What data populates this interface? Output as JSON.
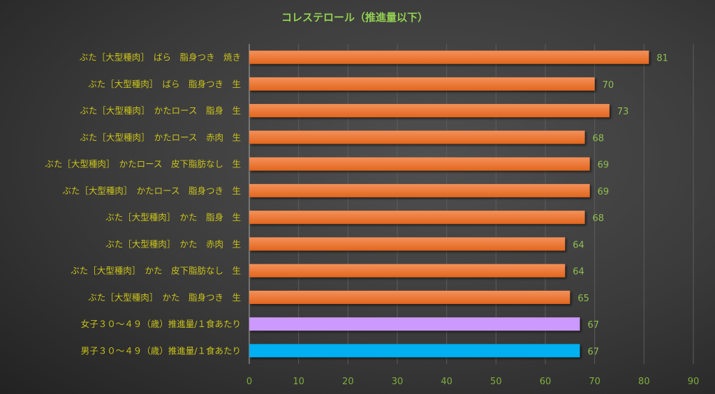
{
  "chart_data": {
    "type": "bar",
    "orientation": "horizontal",
    "title": "コレステロール（推進量以下）",
    "xlabel": "",
    "ylabel": "",
    "xlim": [
      0,
      90
    ],
    "xticks": [
      0,
      10,
      20,
      30,
      40,
      50,
      60,
      70,
      80,
      90
    ],
    "grid": true,
    "legend": "none",
    "categories": [
      "ぶた［大型種肉］　ばら　脂身つき　焼き",
      "ぶた［大型種肉］　ばら　脂身つき　生",
      "ぶた［大型種肉］　かたロース　脂身　生",
      "ぶた［大型種肉］　かたロース　赤肉　生",
      "ぶた［大型種肉］　かたロース　皮下脂肪なし　生",
      "ぶた［大型種肉］　かたロース　脂身つき　生",
      "ぶた［大型種肉］　かた　脂身　生",
      "ぶた［大型種肉］　かた　赤肉　生",
      "ぶた［大型種肉］　かた　皮下脂肪なし　生",
      "ぶた［大型種肉］　かた　脂身つき　生",
      "女子３０～４９（歳）推進量/１食あたり",
      "男子３０～４９（歳）推進量/１食あたり"
    ],
    "values": [
      81,
      70,
      73,
      68,
      69,
      69,
      68,
      64,
      64,
      65,
      67,
      67
    ],
    "colors": [
      "#ed7d31",
      "#ed7d31",
      "#ed7d31",
      "#ed7d31",
      "#ed7d31",
      "#ed7d31",
      "#ed7d31",
      "#ed7d31",
      "#ed7d31",
      "#ed7d31",
      "#cc99ff",
      "#00b0f0"
    ]
  }
}
